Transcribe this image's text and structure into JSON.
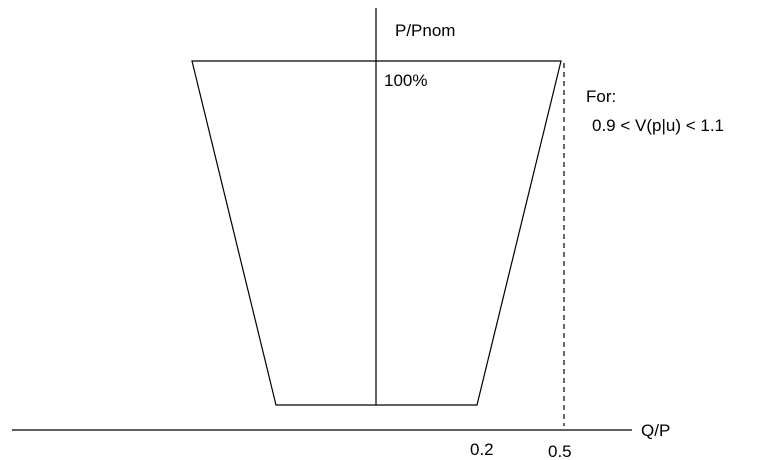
{
  "diagram": {
    "y_axis_label": "P/Pnom",
    "x_axis_label": "Q/P",
    "top_label": "100%",
    "tick_labels": [
      "0.2",
      "0.5"
    ],
    "condition_title": "For:",
    "condition_range": "0.9 < V(p|u) < 1.1",
    "colors": {
      "line": "#000000",
      "background": "#ffffff"
    }
  }
}
